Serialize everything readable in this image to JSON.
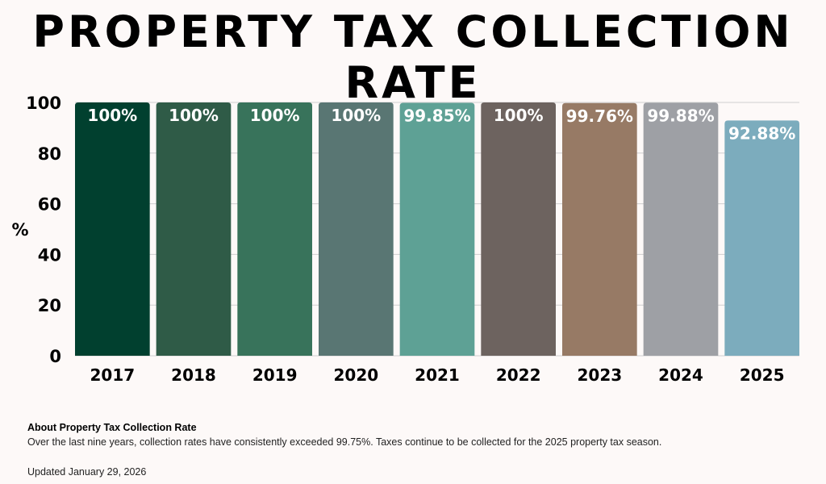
{
  "title": "PROPERTY TAX COLLECTION RATE",
  "chart_data": {
    "type": "bar",
    "categories": [
      "2017",
      "2018",
      "2019",
      "2020",
      "2021",
      "2022",
      "2023",
      "2024",
      "2025"
    ],
    "values": [
      100,
      100,
      100,
      100,
      99.85,
      100,
      99.76,
      99.88,
      92.88
    ],
    "data_labels": [
      "100%",
      "100%",
      "100%",
      "100%",
      "99.85%",
      "100%",
      "99.76%",
      "99.88%",
      "92.88%"
    ],
    "colors": [
      "#01402f",
      "#2f5b47",
      "#38735b",
      "#597673",
      "#5ea195",
      "#6d635f",
      "#977a65",
      "#9ea0a5",
      "#7cacbd"
    ],
    "ylabel": "%",
    "xlabel": "",
    "ylim": [
      0,
      100
    ],
    "yticks": [
      0,
      20,
      40,
      60,
      80,
      100
    ],
    "grid": true
  },
  "about": {
    "title": "About Property Tax Collection Rate",
    "text": "Over the last nine years, collection rates have consistently exceeded 99.75%. Taxes continue to be collected for the 2025 property tax season."
  },
  "updated": "Updated January 29, 2026"
}
